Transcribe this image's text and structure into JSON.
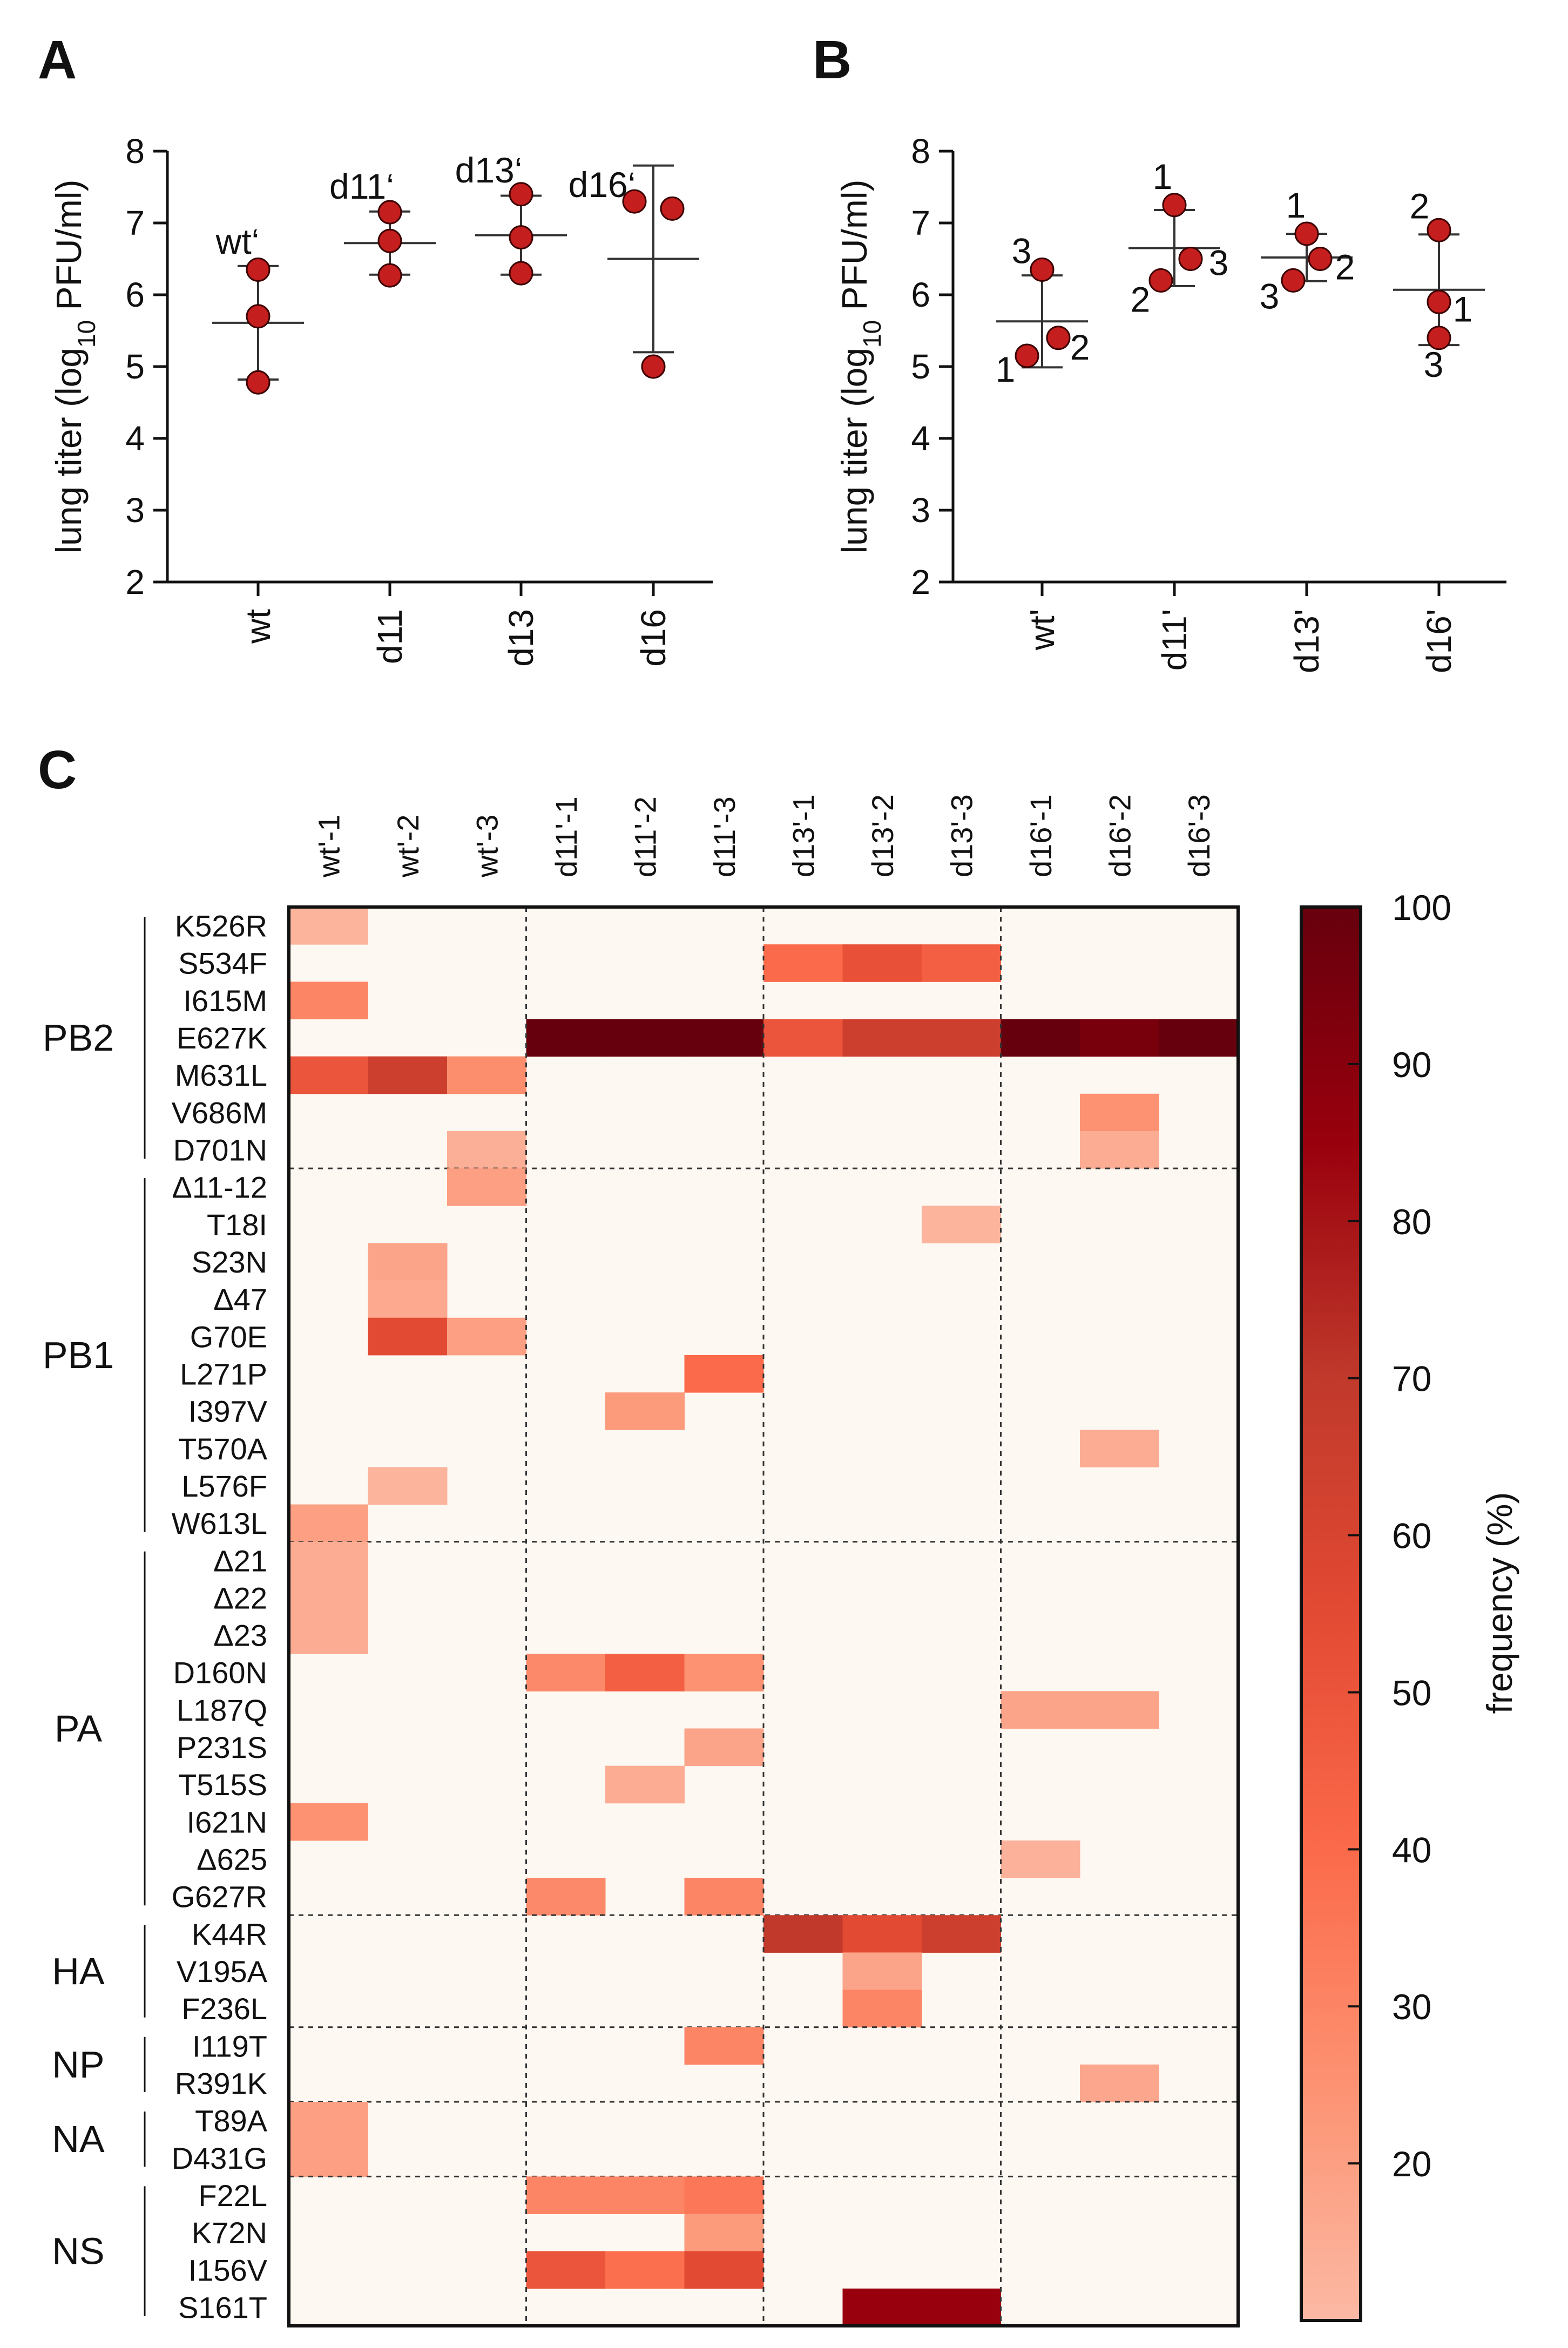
{
  "colors": {
    "point_fill": "#c41e1e",
    "point_stroke": "#3a0000",
    "axis": "#111111",
    "heatmap_background": "#fdf8f2",
    "colormap": [
      "#fcb9a4",
      "#fc9272",
      "#fb6a4a",
      "#e34a33",
      "#c0392b",
      "#99000d",
      "#67000d"
    ]
  },
  "chart_data": [
    {
      "panel": "A",
      "type": "scatter",
      "ylabel_parts": [
        "lung titer (log",
        "10",
        " PFU/ml)"
      ],
      "ylim": [
        2,
        8
      ],
      "yticks": [
        "2",
        "3",
        "4",
        "5",
        "6",
        "7",
        "8"
      ],
      "categories": [
        "wt",
        "d11",
        "d13",
        "d16"
      ],
      "group_labels": [
        "wt‘",
        "d11‘",
        "d13‘",
        "d16‘"
      ],
      "points": [
        [
          6.35,
          5.7,
          4.78
        ],
        [
          7.15,
          6.75,
          6.27
        ],
        [
          7.4,
          6.8,
          6.3
        ],
        [
          7.3,
          7.2,
          5.0
        ]
      ],
      "means": [
        5.61,
        6.72,
        6.83,
        6.5
      ],
      "sd": [
        0.79,
        0.44,
        0.55,
        1.3
      ]
    },
    {
      "panel": "B",
      "type": "scatter",
      "ylabel_parts": [
        "lung titer  (log",
        "10",
        " PFU/ml)"
      ],
      "ylim": [
        2,
        8
      ],
      "yticks": [
        "2",
        "3",
        "4",
        "5",
        "6",
        "7",
        "8"
      ],
      "categories": [
        "wt'",
        "d11'",
        "d13'",
        "d16'"
      ],
      "points": [
        [
          {
            "y": 6.35,
            "label": "3"
          },
          {
            "y": 5.4,
            "label": "2"
          },
          {
            "y": 5.15,
            "label": "1"
          }
        ],
        [
          {
            "y": 7.25,
            "label": "1"
          },
          {
            "y": 6.5,
            "label": "3"
          },
          {
            "y": 6.2,
            "label": "2"
          }
        ],
        [
          {
            "y": 6.85,
            "label": "1"
          },
          {
            "y": 6.5,
            "label": "2"
          },
          {
            "y": 6.2,
            "label": "3"
          }
        ],
        [
          {
            "y": 6.9,
            "label": "2"
          },
          {
            "y": 5.9,
            "label": "1"
          },
          {
            "y": 5.4,
            "label": "3"
          }
        ]
      ],
      "means": [
        5.63,
        6.65,
        6.52,
        6.07
      ],
      "sd": [
        0.64,
        0.53,
        0.33,
        0.77
      ]
    },
    {
      "panel": "C",
      "type": "heatmap",
      "columns": [
        "wt'-1",
        "wt'-2",
        "wt'-3",
        "d11'-1",
        "d11'-2",
        "d11'-3",
        "d13'-1",
        "d13'-2",
        "d13'-3",
        "d16'-1",
        "d16'-2",
        "d16'-3"
      ],
      "groups": [
        {
          "name": "PB2",
          "rows": [
            {
              "label": "K526R",
              "values": [
                12,
                null,
                null,
                null,
                null,
                null,
                null,
                null,
                null,
                null,
                null,
                null
              ]
            },
            {
              "label": "S534F",
              "values": [
                null,
                null,
                null,
                null,
                null,
                null,
                40,
                52,
                45,
                null,
                null,
                null
              ]
            },
            {
              "label": "I615M",
              "values": [
                30,
                null,
                null,
                null,
                null,
                null,
                null,
                null,
                null,
                null,
                null,
                null
              ]
            },
            {
              "label": "E627K",
              "values": [
                null,
                null,
                null,
                100,
                100,
                100,
                50,
                65,
                65,
                100,
                95,
                100
              ]
            },
            {
              "label": "M631L",
              "values": [
                50,
                65,
                27,
                null,
                null,
                null,
                null,
                null,
                null,
                null,
                null,
                null
              ]
            },
            {
              "label": "V686M",
              "values": [
                null,
                null,
                null,
                null,
                null,
                null,
                null,
                null,
                null,
                null,
                25,
                null
              ]
            },
            {
              "label": "D701N",
              "values": [
                null,
                null,
                14,
                null,
                null,
                null,
                null,
                null,
                null,
                null,
                15,
                null
              ]
            }
          ]
        },
        {
          "name": "PB1",
          "rows": [
            {
              "label": "Δ11-12",
              "values": [
                null,
                null,
                20,
                null,
                null,
                null,
                null,
                null,
                null,
                null,
                null,
                null
              ]
            },
            {
              "label": "T18I",
              "values": [
                null,
                null,
                null,
                null,
                null,
                null,
                null,
                null,
                12,
                null,
                null,
                null
              ]
            },
            {
              "label": "S23N",
              "values": [
                null,
                18,
                null,
                null,
                null,
                null,
                null,
                null,
                null,
                null,
                null,
                null
              ]
            },
            {
              "label": "Δ47",
              "values": [
                null,
                16,
                null,
                null,
                null,
                null,
                null,
                null,
                null,
                null,
                null,
                null
              ]
            },
            {
              "label": "G70E",
              "values": [
                null,
                55,
                20,
                null,
                null,
                null,
                null,
                null,
                null,
                null,
                null,
                null
              ]
            },
            {
              "label": "L271P",
              "values": [
                null,
                null,
                null,
                null,
                null,
                40,
                null,
                null,
                null,
                null,
                null,
                null
              ]
            },
            {
              "label": "I397V",
              "values": [
                null,
                null,
                null,
                null,
                22,
                null,
                null,
                null,
                null,
                null,
                null,
                null
              ]
            },
            {
              "label": "T570A",
              "values": [
                null,
                null,
                null,
                null,
                null,
                null,
                null,
                null,
                null,
                null,
                15,
                null
              ]
            },
            {
              "label": "L576F",
              "values": [
                null,
                12,
                null,
                null,
                null,
                null,
                null,
                null,
                null,
                null,
                null,
                null
              ]
            },
            {
              "label": "W613L",
              "values": [
                20,
                null,
                null,
                null,
                null,
                null,
                null,
                null,
                null,
                null,
                null,
                null
              ]
            }
          ]
        },
        {
          "name": "PA",
          "rows": [
            {
              "label": "Δ21",
              "values": [
                15,
                null,
                null,
                null,
                null,
                null,
                null,
                null,
                null,
                null,
                null,
                null
              ]
            },
            {
              "label": "Δ22",
              "values": [
                15,
                null,
                null,
                null,
                null,
                null,
                null,
                null,
                null,
                null,
                null,
                null
              ]
            },
            {
              "label": "Δ23",
              "values": [
                15,
                null,
                null,
                null,
                null,
                null,
                null,
                null,
                null,
                null,
                null,
                null
              ]
            },
            {
              "label": "D160N",
              "values": [
                null,
                null,
                null,
                28,
                45,
                25,
                null,
                null,
                null,
                null,
                null,
                null
              ]
            },
            {
              "label": "L187Q",
              "values": [
                null,
                null,
                null,
                null,
                null,
                null,
                null,
                null,
                null,
                18,
                18,
                null
              ]
            },
            {
              "label": "P231S",
              "values": [
                null,
                null,
                null,
                null,
                null,
                18,
                null,
                null,
                null,
                null,
                null,
                null
              ]
            },
            {
              "label": "T515S",
              "values": [
                null,
                null,
                null,
                null,
                15,
                null,
                null,
                null,
                null,
                null,
                null,
                null
              ]
            },
            {
              "label": "I621N",
              "values": [
                25,
                null,
                null,
                null,
                null,
                null,
                null,
                null,
                null,
                null,
                null,
                null
              ]
            },
            {
              "label": "Δ625",
              "values": [
                null,
                null,
                null,
                null,
                null,
                null,
                null,
                null,
                null,
                13,
                null,
                null
              ]
            },
            {
              "label": "G627R",
              "values": [
                null,
                null,
                null,
                28,
                null,
                30,
                null,
                null,
                null,
                null,
                null,
                null
              ]
            }
          ]
        },
        {
          "name": "HA",
          "rows": [
            {
              "label": "K44R",
              "values": [
                null,
                null,
                null,
                null,
                null,
                null,
                70,
                55,
                65,
                null,
                null,
                null
              ]
            },
            {
              "label": "V195A",
              "values": [
                null,
                null,
                null,
                null,
                null,
                null,
                null,
                18,
                null,
                null,
                null,
                null
              ]
            },
            {
              "label": "F236L",
              "values": [
                null,
                null,
                null,
                null,
                null,
                null,
                null,
                30,
                null,
                null,
                null,
                null
              ]
            }
          ]
        },
        {
          "name": "NP",
          "rows": [
            {
              "label": "I119T",
              "values": [
                null,
                null,
                null,
                null,
                null,
                30,
                null,
                null,
                null,
                null,
                null,
                null
              ]
            },
            {
              "label": "R391K",
              "values": [
                null,
                null,
                null,
                null,
                null,
                null,
                null,
                null,
                null,
                null,
                17,
                null
              ]
            }
          ]
        },
        {
          "name": "NA",
          "rows": [
            {
              "label": "T89A",
              "values": [
                20,
                null,
                null,
                null,
                null,
                null,
                null,
                null,
                null,
                null,
                null,
                null
              ]
            },
            {
              "label": "D431G",
              "values": [
                20,
                null,
                null,
                null,
                null,
                null,
                null,
                null,
                null,
                null,
                null,
                null
              ]
            }
          ]
        },
        {
          "name": "NS",
          "rows": [
            {
              "label": "F22L",
              "values": [
                null,
                null,
                null,
                30,
                30,
                35,
                null,
                null,
                null,
                null,
                null,
                null
              ]
            },
            {
              "label": "K72N",
              "values": [
                null,
                null,
                null,
                null,
                null,
                22,
                null,
                null,
                null,
                null,
                null,
                null
              ]
            },
            {
              "label": "I156V",
              "values": [
                null,
                null,
                null,
                50,
                38,
                55,
                null,
                null,
                null,
                null,
                null,
                null
              ]
            },
            {
              "label": "S161T",
              "values": [
                null,
                null,
                null,
                null,
                null,
                null,
                null,
                85,
                85,
                null,
                null,
                null
              ]
            }
          ]
        }
      ],
      "colorbar": {
        "title": "frequency  (%)",
        "min": 10,
        "max": 100,
        "ticks": [
          "20",
          "30",
          "40",
          "50",
          "60",
          "70",
          "80",
          "90",
          "100"
        ]
      }
    }
  ]
}
